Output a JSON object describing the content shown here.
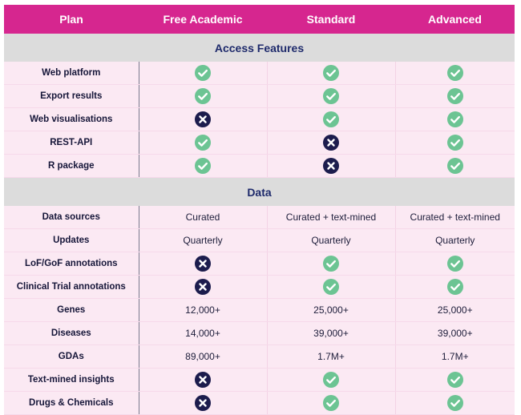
{
  "header": [
    "Plan",
    "Free Academic",
    "Standard",
    "Advanced"
  ],
  "colors": {
    "header_bg": "#d6268f",
    "section_bg": "#dcdcdc",
    "row_bg": "#fbe9f3",
    "check": "#6cc493",
    "cross": "#1c1c4d"
  },
  "sections": [
    {
      "title": "Access Features",
      "rows": [
        {
          "label": "Web platform",
          "cells": [
            "check",
            "check",
            "check"
          ]
        },
        {
          "label": "Export results",
          "cells": [
            "check",
            "check",
            "check"
          ]
        },
        {
          "label": "Web visualisations",
          "cells": [
            "cross",
            "check",
            "check"
          ]
        },
        {
          "label": "REST-API",
          "cells": [
            "check",
            "cross",
            "check"
          ]
        },
        {
          "label": "R package",
          "cells": [
            "check",
            "cross",
            "check"
          ]
        }
      ]
    },
    {
      "title": "Data",
      "rows": [
        {
          "label": "Data sources",
          "cells": [
            "Curated",
            "Curated + text-mined",
            "Curated + text-mined"
          ]
        },
        {
          "label": "Updates",
          "cells": [
            "Quarterly",
            "Quarterly",
            "Quarterly"
          ]
        },
        {
          "label": "LoF/GoF annotations",
          "cells": [
            "cross",
            "check",
            "check"
          ]
        },
        {
          "label": "Clinical Trial annotations",
          "cells": [
            "cross",
            "check",
            "check"
          ]
        },
        {
          "label": "Genes",
          "cells": [
            "12,000+",
            "25,000+",
            "25,000+"
          ]
        },
        {
          "label": "Diseases",
          "cells": [
            "14,000+",
            "39,000+",
            "39,000+"
          ]
        },
        {
          "label": "GDAs",
          "cells": [
            "89,000+",
            "1.7M+",
            "1.7M+"
          ]
        },
        {
          "label": "Text-mined insights",
          "cells": [
            "cross",
            "check",
            "check"
          ]
        },
        {
          "label": "Drugs & Chemicals",
          "cells": [
            "cross",
            "check",
            "check"
          ]
        }
      ]
    }
  ]
}
